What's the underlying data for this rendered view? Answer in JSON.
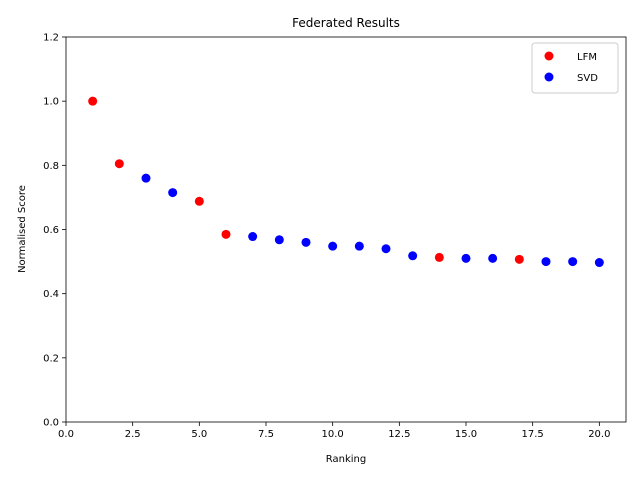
{
  "chart_data": {
    "type": "scatter",
    "title": "Federated Results",
    "xlabel": "Ranking",
    "ylabel": "Normalised Score",
    "xlim": [
      0,
      21
    ],
    "ylim": [
      0,
      1.2
    ],
    "xticks": [
      "0.0",
      "2.5",
      "5.0",
      "7.5",
      "10.0",
      "12.5",
      "15.0",
      "17.5",
      "20.0"
    ],
    "xtick_values": [
      0,
      2.5,
      5,
      7.5,
      10,
      12.5,
      15,
      17.5,
      20
    ],
    "yticks": [
      "0.0",
      "0.2",
      "0.4",
      "0.6",
      "0.8",
      "1.0",
      "1.2"
    ],
    "ytick_values": [
      0,
      0.2,
      0.4,
      0.6,
      0.8,
      1.0,
      1.2
    ],
    "grid": false,
    "legend_position": "top-right",
    "series": [
      {
        "name": "LFM",
        "color": "#ff0000",
        "x": [
          1,
          2,
          5,
          6,
          14,
          17
        ],
        "y": [
          1.0,
          0.805,
          0.688,
          0.585,
          0.513,
          0.507
        ]
      },
      {
        "name": "SVD",
        "color": "#0000ff",
        "x": [
          3,
          4,
          7,
          8,
          9,
          10,
          11,
          12,
          13,
          15,
          16,
          18,
          19,
          20
        ],
        "y": [
          0.76,
          0.715,
          0.578,
          0.568,
          0.56,
          0.548,
          0.548,
          0.54,
          0.518,
          0.51,
          0.51,
          0.5,
          0.5,
          0.497
        ]
      }
    ]
  }
}
